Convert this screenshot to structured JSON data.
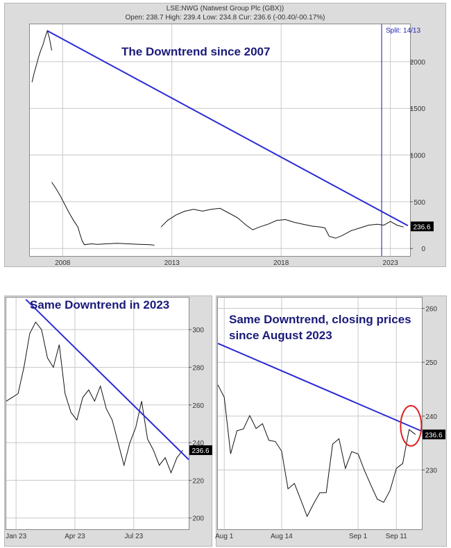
{
  "chart_data": [
    {
      "type": "line",
      "title": "LSE:NWG (Natwest Group Plc (GBX))",
      "subtitle": "Open: 238.7  High: 239.4  Low: 234.8  Cur: 236.6 (-00.40/-00.17%)",
      "annotation": "The Downtrend since 2007",
      "split_label": "Split: 14/13",
      "split_x": 2022.6,
      "current_label": "236.6",
      "x_ticks": [
        {
          "label": "2008",
          "value": 2008
        },
        {
          "label": "2013",
          "value": 2013
        },
        {
          "label": "2018",
          "value": 2018
        },
        {
          "label": "2023",
          "value": 2023
        }
      ],
      "y_ticks": [
        {
          "label": "0",
          "value": 0
        },
        {
          "label": "500",
          "value": 500
        },
        {
          "label": "1000",
          "value": 1000
        },
        {
          "label": "1500",
          "value": 1500
        },
        {
          "label": "2000",
          "value": 2000
        }
      ],
      "xlim": [
        2006.5,
        2023.9
      ],
      "ylim": [
        -80,
        2400
      ],
      "trendline": [
        [
          2007.3,
          2330
        ],
        [
          2023.8,
          245
        ]
      ],
      "series": [
        {
          "values": [
            [
              2006.6,
              1780
            ],
            [
              2006.7,
              1880
            ],
            [
              2006.8,
              1960
            ],
            [
              2006.9,
              2050
            ],
            [
              2007.0,
              2120
            ],
            [
              2007.1,
              2180
            ],
            [
              2007.2,
              2260
            ],
            [
              2007.3,
              2330
            ],
            [
              2007.4,
              2250
            ],
            [
              2007.5,
              2120
            ]
          ]
        },
        {
          "values": [
            [
              2007.5,
              710
            ],
            [
              2007.7,
              640
            ],
            [
              2007.9,
              560
            ],
            [
              2008.1,
              470
            ],
            [
              2008.3,
              380
            ],
            [
              2008.5,
              300
            ],
            [
              2008.7,
              230
            ],
            [
              2008.8,
              150
            ],
            [
              2008.9,
              80
            ],
            [
              2009.0,
              40
            ],
            [
              2009.3,
              50
            ],
            [
              2009.6,
              45
            ],
            [
              2010.0,
              50
            ],
            [
              2010.5,
              55
            ],
            [
              2011.0,
              50
            ],
            [
              2011.5,
              45
            ],
            [
              2012.0,
              40
            ],
            [
              2012.2,
              35
            ]
          ]
        },
        {
          "values": [
            [
              2012.5,
              230
            ],
            [
              2012.8,
              300
            ],
            [
              2013.2,
              360
            ],
            [
              2013.6,
              400
            ],
            [
              2014.0,
              420
            ],
            [
              2014.4,
              400
            ],
            [
              2014.8,
              420
            ],
            [
              2015.2,
              430
            ],
            [
              2015.6,
              380
            ],
            [
              2016.0,
              330
            ],
            [
              2016.4,
              250
            ],
            [
              2016.7,
              200
            ],
            [
              2017.0,
              230
            ],
            [
              2017.4,
              260
            ],
            [
              2017.8,
              300
            ],
            [
              2018.2,
              310
            ],
            [
              2018.6,
              280
            ],
            [
              2019.0,
              260
            ],
            [
              2019.4,
              240
            ],
            [
              2019.8,
              230
            ],
            [
              2020.0,
              220
            ],
            [
              2020.2,
              130
            ],
            [
              2020.5,
              110
            ],
            [
              2020.8,
              140
            ],
            [
              2021.2,
              190
            ],
            [
              2021.6,
              220
            ],
            [
              2022.0,
              250
            ],
            [
              2022.4,
              260
            ],
            [
              2022.7,
              250
            ],
            [
              2023.0,
              290
            ],
            [
              2023.3,
              250
            ],
            [
              2023.6,
              230
            ]
          ]
        }
      ]
    },
    {
      "type": "line",
      "annotation": "Same Downtrend in 2023",
      "current_label": "236.6",
      "x_ticks": [
        {
          "label": "Jan 23",
          "value": 0.5
        },
        {
          "label": "Apr 23",
          "value": 3.5
        },
        {
          "label": "Jul 23",
          "value": 6.5
        }
      ],
      "y_ticks": [
        {
          "label": "200",
          "value": 200
        },
        {
          "label": "220",
          "value": 220
        },
        {
          "label": "240",
          "value": 240
        },
        {
          "label": "260",
          "value": 260
        },
        {
          "label": "280",
          "value": 280
        },
        {
          "label": "300",
          "value": 300
        }
      ],
      "xlim": [
        0,
        9.3
      ],
      "ylim": [
        194,
        317
      ],
      "trendline": [
        [
          1.0,
          316
        ],
        [
          9.3,
          231
        ]
      ],
      "series": [
        {
          "values": [
            [
              0,
              262
            ],
            [
              0.3,
              264
            ],
            [
              0.6,
              266
            ],
            [
              0.9,
              280
            ],
            [
              1.2,
              298
            ],
            [
              1.5,
              304
            ],
            [
              1.8,
              300
            ],
            [
              2.1,
              285
            ],
            [
              2.4,
              280
            ],
            [
              2.7,
              292
            ],
            [
              3.0,
              266
            ],
            [
              3.3,
              256
            ],
            [
              3.6,
              252
            ],
            [
              3.9,
              264
            ],
            [
              4.2,
              268
            ],
            [
              4.5,
              262
            ],
            [
              4.8,
              270
            ],
            [
              5.1,
              258
            ],
            [
              5.4,
              252
            ],
            [
              5.7,
              240
            ],
            [
              6.0,
              228
            ],
            [
              6.3,
              240
            ],
            [
              6.6,
              248
            ],
            [
              6.9,
              262
            ],
            [
              7.2,
              242
            ],
            [
              7.5,
              236
            ],
            [
              7.8,
              228
            ],
            [
              8.1,
              232
            ],
            [
              8.4,
              224
            ],
            [
              8.7,
              232
            ],
            [
              9.0,
              236
            ]
          ]
        }
      ]
    },
    {
      "type": "line",
      "annotation": "Same Downtrend, closing prices since August 2023",
      "current_label": "236.6",
      "x_ticks": [
        {
          "label": "Aug 1",
          "value": 1
        },
        {
          "label": "Aug 14",
          "value": 10
        },
        {
          "label": "Sep 1",
          "value": 22
        },
        {
          "label": "Sep 11",
          "value": 28
        }
      ],
      "y_ticks": [
        {
          "label": "230",
          "value": 230
        },
        {
          "label": "240",
          "value": 240
        },
        {
          "label": "250",
          "value": 250
        },
        {
          "label": "260",
          "value": 260
        }
      ],
      "xlim": [
        0,
        32
      ],
      "ylim": [
        219,
        262
      ],
      "trendline": [
        [
          0,
          253.5
        ],
        [
          32,
          237.2
        ]
      ],
      "series": [
        {
          "values": [
            [
              0,
              245.8
            ],
            [
              1,
              243.5
            ],
            [
              2,
              233.0
            ],
            [
              3,
              237.3
            ],
            [
              4,
              237.6
            ],
            [
              5,
              240.1
            ],
            [
              6,
              237.7
            ],
            [
              7,
              238.6
            ],
            [
              8,
              235.5
            ],
            [
              9,
              235.3
            ],
            [
              10,
              233.5
            ],
            [
              11,
              226.5
            ],
            [
              12,
              227.5
            ],
            [
              13,
              224.5
            ],
            [
              14,
              221.4
            ],
            [
              15,
              223.7
            ],
            [
              16,
              225.8
            ],
            [
              17,
              225.8
            ],
            [
              18,
              234.8
            ],
            [
              19,
              235.8
            ],
            [
              20,
              230.3
            ],
            [
              21,
              233.4
            ],
            [
              22,
              233.0
            ],
            [
              23,
              229.9
            ],
            [
              24,
              227.2
            ],
            [
              25,
              224.6
            ],
            [
              26,
              224.0
            ],
            [
              27,
              226.2
            ],
            [
              28,
              230.3
            ],
            [
              29,
              231.2
            ],
            [
              30,
              237.5
            ],
            [
              31,
              236.6
            ]
          ]
        }
      ]
    }
  ]
}
